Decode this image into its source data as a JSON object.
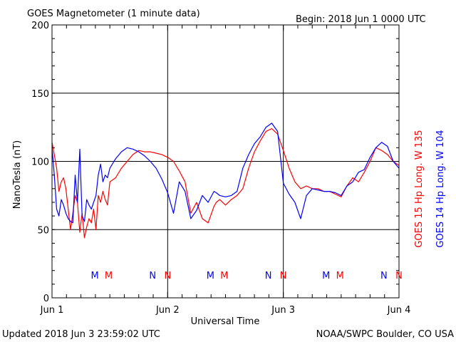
{
  "chart_data": {
    "type": "line",
    "title": "GOES Magnetometer (1 minute data)",
    "begin_label": "Begin:  2018 Jun 1 0000 UTC",
    "xlabel": "Universal Time",
    "ylabel": "NanoTesla (nT)",
    "ylim": [
      0,
      200
    ],
    "xlim": [
      0,
      3
    ],
    "y_ticks": [
      "0",
      "50",
      "100",
      "150",
      "200"
    ],
    "x_ticks": [
      "Jun 1",
      "Jun 2",
      "Jun 3",
      "Jun 4"
    ],
    "grid": true,
    "footer_left": "Updated 2018 Jun  3 23:59:02 UTC",
    "footer_right": "NOAA/SWPC Boulder, CO USA",
    "markers": [
      {
        "label": "M",
        "day": 0.37,
        "color": "#0000ff"
      },
      {
        "label": "M",
        "day": 0.49,
        "color": "#ff0000"
      },
      {
        "label": "N",
        "day": 0.87,
        "color": "#0000ff"
      },
      {
        "label": "N",
        "day": 1.0,
        "color": "#ff0000"
      },
      {
        "label": "M",
        "day": 1.37,
        "color": "#0000ff"
      },
      {
        "label": "M",
        "day": 1.49,
        "color": "#ff0000"
      },
      {
        "label": "N",
        "day": 1.87,
        "color": "#0000ff"
      },
      {
        "label": "N",
        "day": 2.0,
        "color": "#ff0000"
      },
      {
        "label": "M",
        "day": 2.37,
        "color": "#0000ff"
      },
      {
        "label": "M",
        "day": 2.49,
        "color": "#ff0000"
      },
      {
        "label": "N",
        "day": 2.87,
        "color": "#0000ff"
      },
      {
        "label": "N",
        "day": 3.0,
        "color": "#ff0000"
      }
    ],
    "series": [
      {
        "name": "GOES 15 Hp  Long. W 135",
        "color": "#ff0000",
        "x": [
          0.0,
          0.02,
          0.04,
          0.06,
          0.08,
          0.1,
          0.12,
          0.14,
          0.16,
          0.18,
          0.2,
          0.22,
          0.24,
          0.26,
          0.28,
          0.3,
          0.32,
          0.34,
          0.36,
          0.38,
          0.4,
          0.42,
          0.44,
          0.46,
          0.48,
          0.5,
          0.55,
          0.6,
          0.65,
          0.7,
          0.75,
          0.8,
          0.85,
          0.9,
          0.95,
          1.0,
          1.05,
          1.1,
          1.15,
          1.2,
          1.25,
          1.3,
          1.35,
          1.4,
          1.42,
          1.45,
          1.5,
          1.55,
          1.6,
          1.65,
          1.7,
          1.75,
          1.8,
          1.85,
          1.9,
          1.95,
          2.0,
          2.05,
          2.1,
          2.15,
          2.2,
          2.25,
          2.3,
          2.35,
          2.4,
          2.45,
          2.5,
          2.55,
          2.6,
          2.65,
          2.7,
          2.75,
          2.8,
          2.85,
          2.9,
          2.95,
          3.0
        ],
        "y": [
          114,
          105,
          95,
          78,
          85,
          88,
          80,
          65,
          50,
          62,
          75,
          70,
          48,
          62,
          44,
          52,
          58,
          55,
          65,
          50,
          75,
          70,
          78,
          72,
          68,
          85,
          88,
          95,
          100,
          105,
          108,
          107,
          107,
          106,
          105,
          103,
          100,
          93,
          85,
          62,
          70,
          58,
          55,
          67,
          70,
          72,
          68,
          72,
          75,
          80,
          95,
          107,
          115,
          122,
          124,
          120,
          108,
          95,
          85,
          80,
          82,
          80,
          80,
          78,
          78,
          76,
          74,
          82,
          88,
          85,
          92,
          100,
          110,
          108,
          105,
          100,
          97
        ],
        "_comment": "red series approximated"
      },
      {
        "name": "GOES 14 Hp  Long. W 104",
        "color": "#0000ff",
        "x": [
          0.0,
          0.02,
          0.04,
          0.06,
          0.08,
          0.1,
          0.12,
          0.14,
          0.16,
          0.18,
          0.2,
          0.22,
          0.24,
          0.26,
          0.28,
          0.3,
          0.32,
          0.34,
          0.36,
          0.38,
          0.4,
          0.42,
          0.44,
          0.46,
          0.48,
          0.5,
          0.55,
          0.6,
          0.65,
          0.7,
          0.75,
          0.8,
          0.85,
          0.9,
          0.95,
          1.0,
          1.05,
          1.1,
          1.15,
          1.2,
          1.25,
          1.3,
          1.35,
          1.4,
          1.42,
          1.45,
          1.5,
          1.55,
          1.6,
          1.65,
          1.7,
          1.75,
          1.8,
          1.85,
          1.9,
          1.95,
          2.0,
          2.05,
          2.1,
          2.15,
          2.2,
          2.25,
          2.3,
          2.35,
          2.4,
          2.45,
          2.5,
          2.55,
          2.6,
          2.65,
          2.7,
          2.75,
          2.8,
          2.85,
          2.9,
          2.95,
          3.0
        ],
        "y": [
          110,
          90,
          65,
          60,
          72,
          68,
          62,
          58,
          56,
          55,
          90,
          70,
          109,
          60,
          56,
          72,
          68,
          65,
          70,
          75,
          90,
          98,
          85,
          90,
          88,
          95,
          102,
          107,
          110,
          109,
          107,
          104,
          100,
          95,
          87,
          77,
          62,
          85,
          78,
          58,
          64,
          75,
          70,
          78,
          77,
          75,
          74,
          75,
          78,
          95,
          105,
          113,
          118,
          125,
          128,
          122,
          84,
          76,
          70,
          58,
          75,
          80,
          79,
          78,
          78,
          77,
          75,
          82,
          85,
          92,
          94,
          103,
          110,
          114,
          111,
          100,
          95
        ],
        "_comment": "blue series approximated"
      }
    ]
  }
}
